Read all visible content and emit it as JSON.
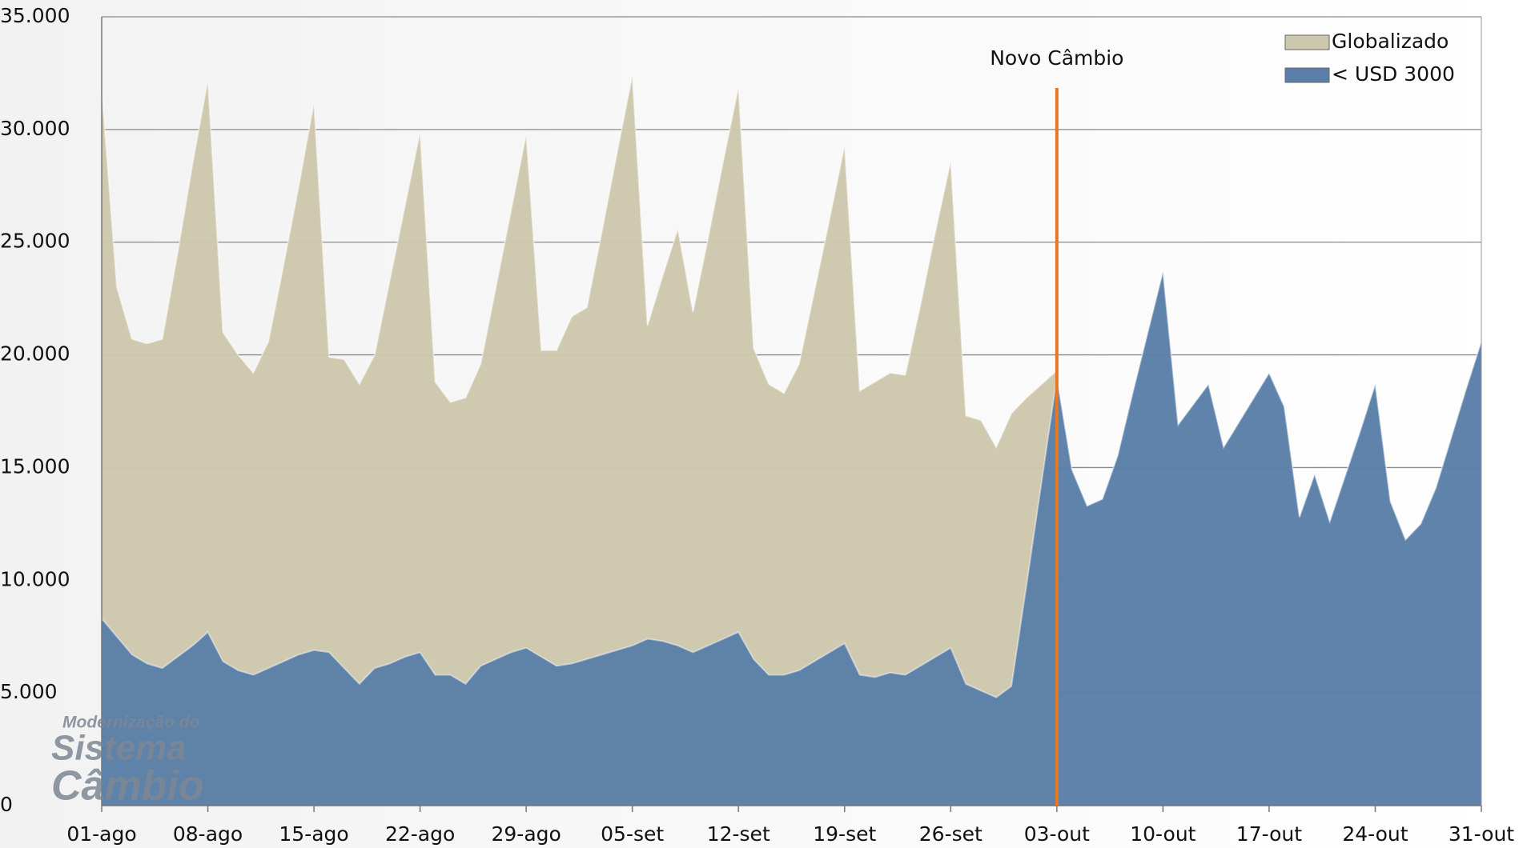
{
  "chart_data": {
    "type": "area",
    "categories": [
      "01-ago",
      null,
      null,
      null,
      null,
      null,
      null,
      "08-ago",
      null,
      null,
      null,
      null,
      null,
      null,
      "15-ago",
      null,
      null,
      null,
      null,
      null,
      null,
      "22-ago",
      null,
      null,
      null,
      null,
      null,
      null,
      "29-ago",
      null,
      null,
      null,
      null,
      null,
      null,
      "05-set",
      null,
      null,
      null,
      null,
      null,
      null,
      "12-set",
      null,
      null,
      null,
      null,
      null,
      null,
      "19-set",
      null,
      null,
      null,
      null,
      null,
      null,
      "26-set",
      null,
      null,
      null,
      null,
      null,
      null,
      "03-out",
      null,
      null,
      null,
      null,
      null,
      null,
      "10-out",
      null,
      null,
      null,
      null,
      null,
      null,
      "17-out",
      null,
      null,
      null,
      null,
      null,
      null,
      "24-out",
      null,
      null,
      null,
      null,
      null,
      null,
      "31-out"
    ],
    "series": [
      {
        "name": "Globalizado",
        "color": "#cdc7ad",
        "values": [
          31800,
          23000,
          20700,
          20500,
          20700,
          24500,
          28500,
          32200,
          21000,
          20000,
          19200,
          20600,
          24000,
          27500,
          31200,
          19900,
          19800,
          18700,
          20000,
          23300,
          26600,
          29900,
          18800,
          17900,
          18100,
          19600,
          23000,
          26400,
          29800,
          20200,
          20200,
          21700,
          22100,
          25500,
          29000,
          32400,
          21300,
          23500,
          25600,
          21900,
          25200,
          28600,
          31900,
          20300,
          18700,
          18300,
          19600,
          22800,
          26000,
          29300,
          18400,
          18800,
          19200,
          19100,
          22200,
          25500,
          28600,
          17300,
          17100,
          15900,
          17400,
          18100,
          18700,
          19300,
          null,
          null,
          null,
          null,
          null,
          null,
          null,
          null,
          null,
          null,
          null,
          null,
          null,
          null,
          null,
          null,
          null,
          null,
          null,
          null,
          null,
          null,
          null,
          null,
          null,
          null,
          null,
          null
        ]
      },
      {
        "name": "< USD 3000",
        "color": "#5b7fa8",
        "values": [
          8300,
          7500,
          6700,
          6300,
          6100,
          6600,
          7100,
          7700,
          6400,
          6000,
          5800,
          6100,
          6400,
          6700,
          6900,
          6800,
          6100,
          5400,
          6100,
          6300,
          6600,
          6800,
          5800,
          5800,
          5400,
          6200,
          6500,
          6800,
          7000,
          6600,
          6200,
          6300,
          6500,
          6700,
          6900,
          7100,
          7400,
          7300,
          7100,
          6800,
          7100,
          7400,
          7700,
          6500,
          5800,
          5800,
          6000,
          6400,
          6800,
          7200,
          5800,
          5700,
          5900,
          5800,
          6200,
          6600,
          7000,
          5400,
          5100,
          4800,
          5300,
          9800,
          14400,
          19000,
          14900,
          13300,
          13600,
          15500,
          18300,
          21000,
          23700,
          16900,
          17800,
          18700,
          15900,
          17000,
          18100,
          19200,
          17700,
          12800,
          14700,
          12600,
          14600,
          16600,
          18700,
          13500,
          11800,
          12500,
          14100,
          16300,
          18500,
          20600
        ]
      }
    ],
    "ylim": [
      0,
      35000
    ],
    "yticks": [
      0,
      {
        "value": 5000,
        "label": "5.000"
      },
      {
        "value": 10000,
        "label": "10.000"
      },
      {
        "value": 15000,
        "label": "15.000"
      },
      {
        "value": 20000,
        "label": "20.000"
      },
      {
        "value": 25000,
        "label": "25.000"
      },
      {
        "value": 30000,
        "label": "30.000"
      },
      {
        "value": 35000,
        "label": "35.000"
      }
    ],
    "grid": true,
    "legend": "top-right",
    "annotation": {
      "label": "Novo Câmbio",
      "category": "03-out",
      "color": "#e87722"
    },
    "watermark": [
      "Modernização do",
      "Sistema",
      "Câmbio"
    ]
  }
}
